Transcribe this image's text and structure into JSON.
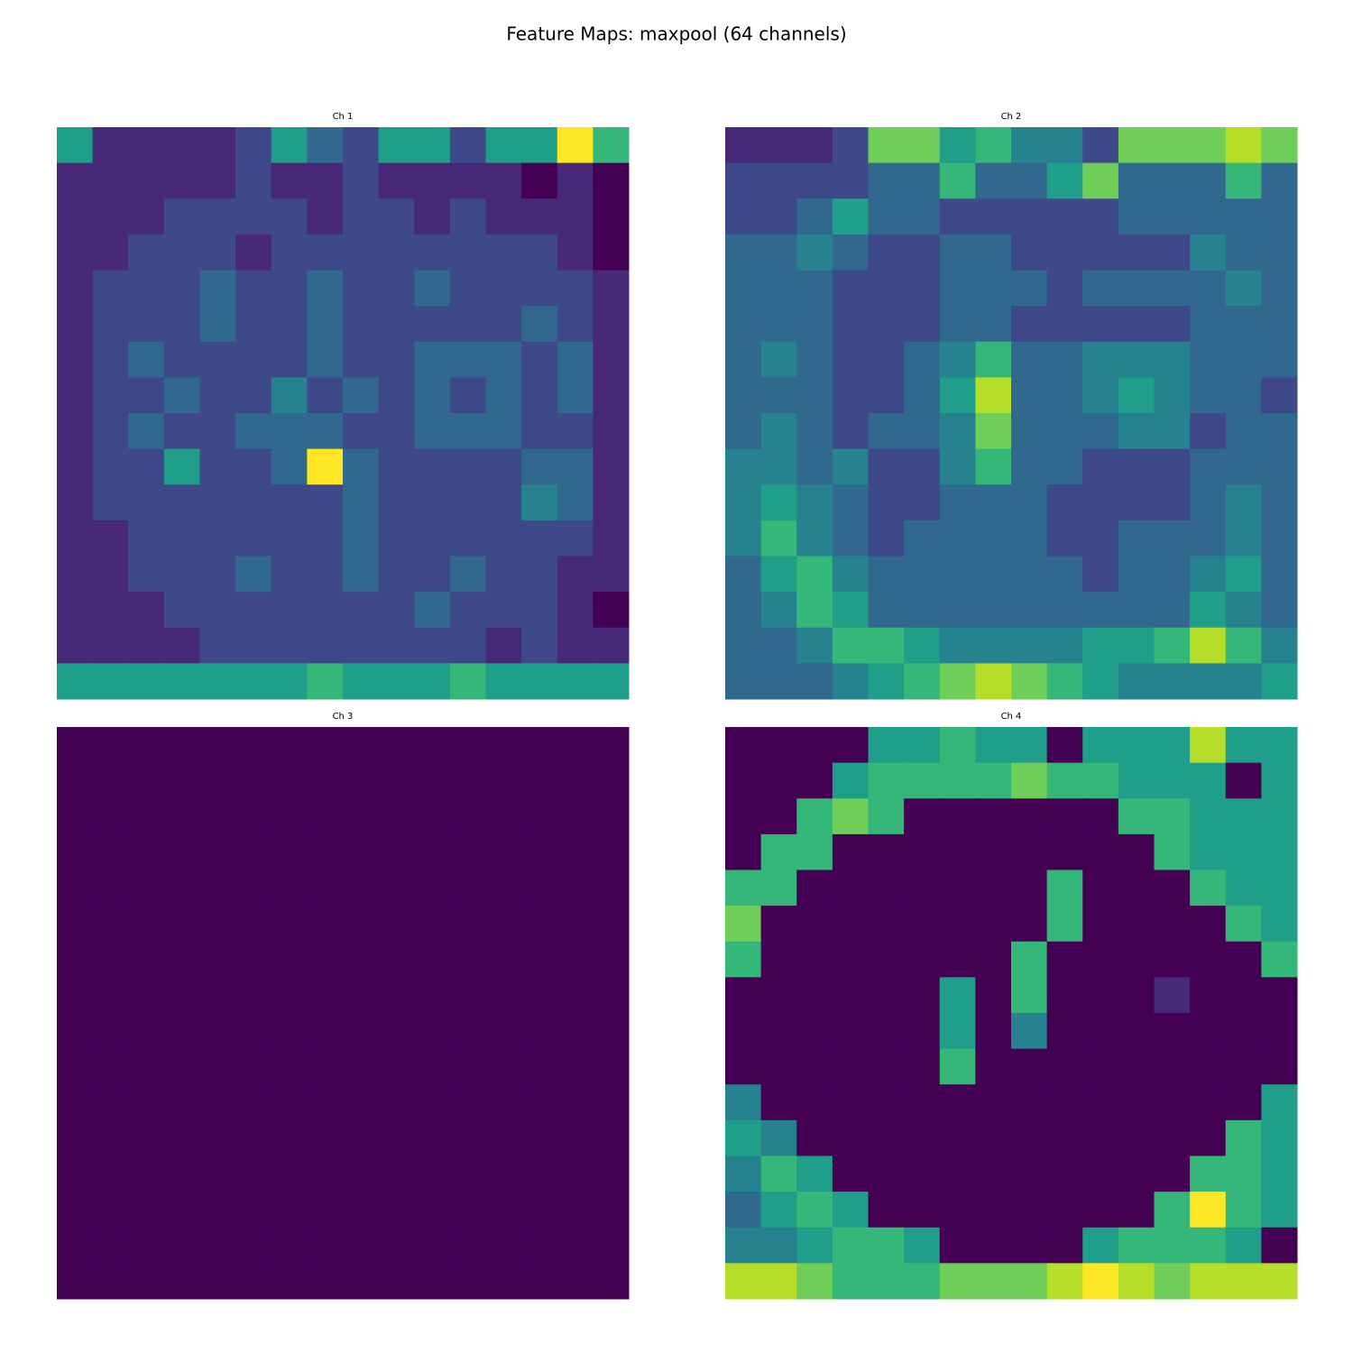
{
  "title": "Feature Maps: maxpool (64 channels)",
  "chart_data": [
    {
      "type": "heatmap",
      "title": "Ch 1",
      "colormap": "viridis",
      "zlim": [
        0,
        9
      ],
      "values": [
        [
          5,
          1,
          1,
          1,
          1,
          2,
          5,
          3,
          2,
          5,
          5,
          2,
          5,
          5,
          9,
          6
        ],
        [
          1,
          1,
          1,
          1,
          1,
          2,
          1,
          1,
          2,
          1,
          1,
          1,
          1,
          0,
          1,
          0
        ],
        [
          1,
          1,
          1,
          2,
          2,
          2,
          2,
          1,
          2,
          2,
          1,
          2,
          1,
          1,
          1,
          0
        ],
        [
          1,
          1,
          2,
          2,
          2,
          1,
          2,
          2,
          2,
          2,
          2,
          2,
          2,
          2,
          1,
          0
        ],
        [
          1,
          2,
          2,
          2,
          3,
          2,
          2,
          3,
          2,
          2,
          3,
          2,
          2,
          2,
          2,
          1
        ],
        [
          1,
          2,
          2,
          2,
          3,
          2,
          2,
          3,
          2,
          2,
          2,
          2,
          2,
          3,
          2,
          1
        ],
        [
          1,
          2,
          3,
          2,
          2,
          2,
          2,
          3,
          2,
          2,
          3,
          3,
          3,
          2,
          3,
          1
        ],
        [
          1,
          2,
          2,
          3,
          2,
          2,
          4,
          2,
          3,
          2,
          3,
          2,
          3,
          2,
          3,
          1
        ],
        [
          1,
          2,
          3,
          2,
          2,
          3,
          3,
          3,
          2,
          2,
          3,
          3,
          3,
          2,
          2,
          1
        ],
        [
          1,
          2,
          2,
          5,
          2,
          2,
          3,
          9,
          3,
          2,
          2,
          2,
          2,
          3,
          3,
          1
        ],
        [
          1,
          2,
          2,
          2,
          2,
          2,
          2,
          2,
          3,
          2,
          2,
          2,
          2,
          4,
          3,
          1
        ],
        [
          1,
          1,
          2,
          2,
          2,
          2,
          2,
          2,
          3,
          2,
          2,
          2,
          2,
          2,
          2,
          1
        ],
        [
          1,
          1,
          2,
          2,
          2,
          3,
          2,
          2,
          3,
          2,
          2,
          3,
          2,
          2,
          1,
          1
        ],
        [
          1,
          1,
          1,
          2,
          2,
          2,
          2,
          2,
          2,
          2,
          3,
          2,
          2,
          2,
          1,
          0
        ],
        [
          1,
          1,
          1,
          1,
          2,
          2,
          2,
          2,
          2,
          2,
          2,
          2,
          1,
          2,
          1,
          1
        ],
        [
          5,
          5,
          5,
          5,
          5,
          5,
          5,
          6,
          5,
          5,
          5,
          6,
          5,
          5,
          5,
          5
        ]
      ]
    },
    {
      "type": "heatmap",
      "title": "Ch 2",
      "colormap": "viridis",
      "zlim": [
        0,
        9
      ],
      "values": [
        [
          1,
          1,
          1,
          2,
          7,
          7,
          5,
          6,
          4,
          4,
          2,
          7,
          7,
          7,
          8,
          7
        ],
        [
          2,
          2,
          2,
          2,
          3,
          3,
          6,
          3,
          3,
          5,
          7,
          3,
          3,
          3,
          6,
          3
        ],
        [
          2,
          2,
          3,
          5,
          3,
          3,
          2,
          2,
          2,
          2,
          2,
          3,
          3,
          3,
          3,
          3
        ],
        [
          3,
          3,
          4,
          3,
          2,
          2,
          3,
          3,
          2,
          2,
          2,
          2,
          2,
          4,
          3,
          3
        ],
        [
          3,
          3,
          3,
          2,
          2,
          2,
          3,
          3,
          3,
          2,
          3,
          3,
          3,
          3,
          4,
          3
        ],
        [
          3,
          3,
          3,
          2,
          2,
          2,
          3,
          3,
          2,
          2,
          2,
          2,
          2,
          3,
          3,
          3
        ],
        [
          3,
          4,
          3,
          2,
          2,
          3,
          4,
          6,
          3,
          3,
          4,
          4,
          4,
          3,
          3,
          3
        ],
        [
          3,
          3,
          3,
          2,
          2,
          3,
          5,
          8,
          3,
          3,
          4,
          5,
          4,
          3,
          3,
          2
        ],
        [
          3,
          4,
          3,
          2,
          3,
          3,
          4,
          7,
          3,
          3,
          3,
          4,
          4,
          2,
          3,
          3
        ],
        [
          4,
          4,
          3,
          4,
          2,
          2,
          4,
          6,
          3,
          3,
          2,
          2,
          2,
          3,
          3,
          3
        ],
        [
          4,
          5,
          4,
          3,
          2,
          2,
          3,
          3,
          3,
          2,
          2,
          2,
          2,
          3,
          4,
          3
        ],
        [
          4,
          6,
          4,
          3,
          2,
          3,
          3,
          3,
          3,
          2,
          2,
          3,
          3,
          3,
          4,
          3
        ],
        [
          3,
          5,
          6,
          4,
          3,
          3,
          3,
          3,
          3,
          3,
          2,
          3,
          3,
          4,
          5,
          3
        ],
        [
          3,
          4,
          6,
          5,
          3,
          3,
          3,
          3,
          3,
          3,
          3,
          3,
          3,
          5,
          4,
          3
        ],
        [
          3,
          3,
          4,
          6,
          6,
          5,
          4,
          4,
          4,
          4,
          5,
          5,
          6,
          8,
          6,
          4
        ],
        [
          3,
          3,
          3,
          4,
          5,
          6,
          7,
          8,
          7,
          6,
          5,
          4,
          4,
          4,
          4,
          5
        ]
      ]
    },
    {
      "type": "heatmap",
      "title": "Ch 3",
      "colormap": "viridis",
      "zlim": [
        0,
        9
      ],
      "values": [
        [
          0,
          0,
          0,
          0,
          0,
          0,
          0,
          0,
          0,
          0,
          0,
          0,
          0,
          0,
          0,
          0
        ],
        [
          0,
          0,
          0,
          0,
          0,
          0,
          0,
          0,
          0,
          0,
          0,
          0,
          0,
          0,
          0,
          0
        ],
        [
          0,
          0,
          0,
          0,
          0,
          0,
          0,
          0,
          0,
          0,
          0,
          0,
          0,
          0,
          0,
          0
        ],
        [
          0,
          0,
          0,
          0,
          0,
          0,
          0,
          0,
          0,
          0,
          0,
          0,
          0,
          0,
          0,
          0
        ],
        [
          0,
          0,
          0,
          0,
          0,
          0,
          0,
          0,
          0,
          0,
          0,
          0,
          0,
          0,
          0,
          0
        ],
        [
          0,
          0,
          0,
          0,
          0,
          0,
          0,
          0,
          0,
          0,
          0,
          0,
          0,
          0,
          0,
          0
        ],
        [
          0,
          0,
          0,
          0,
          0,
          0,
          0,
          0,
          0,
          0,
          0,
          0,
          0,
          0,
          0,
          0
        ],
        [
          0,
          0,
          0,
          0,
          0,
          0,
          0,
          0,
          0,
          0,
          0,
          0,
          0,
          0,
          0,
          0
        ],
        [
          0,
          0,
          0,
          0,
          0,
          0,
          0,
          0,
          0,
          0,
          0,
          0,
          0,
          0,
          0,
          0
        ],
        [
          0,
          0,
          0,
          0,
          0,
          0,
          0,
          0,
          0,
          0,
          0,
          0,
          0,
          0,
          0,
          0
        ],
        [
          0,
          0,
          0,
          0,
          0,
          0,
          0,
          0,
          0,
          0,
          0,
          0,
          0,
          0,
          0,
          0
        ],
        [
          0,
          0,
          0,
          0,
          0,
          0,
          0,
          0,
          0,
          0,
          0,
          0,
          0,
          0,
          0,
          0
        ],
        [
          0,
          0,
          0,
          0,
          0,
          0,
          0,
          0,
          0,
          0,
          0,
          0,
          0,
          0,
          0,
          0
        ],
        [
          0,
          0,
          0,
          0,
          0,
          0,
          0,
          0,
          0,
          0,
          0,
          0,
          0,
          0,
          0,
          0
        ],
        [
          0,
          0,
          0,
          0,
          0,
          0,
          0,
          0,
          0,
          0,
          0,
          0,
          0,
          0,
          0,
          0
        ],
        [
          0,
          0,
          0,
          0,
          0,
          0,
          0,
          0,
          0,
          0,
          0,
          0,
          0,
          0,
          0,
          0
        ]
      ]
    },
    {
      "type": "heatmap",
      "title": "Ch 4",
      "colormap": "viridis",
      "zlim": [
        0,
        9
      ],
      "values": [
        [
          0,
          0,
          0,
          0,
          5,
          5,
          6,
          5,
          5,
          0,
          5,
          5,
          5,
          8,
          5,
          5
        ],
        [
          0,
          0,
          0,
          5,
          6,
          6,
          6,
          6,
          7,
          6,
          6,
          5,
          5,
          5,
          0,
          5
        ],
        [
          0,
          0,
          6,
          7,
          6,
          0,
          0,
          0,
          0,
          0,
          0,
          6,
          6,
          5,
          5,
          5
        ],
        [
          0,
          6,
          6,
          0,
          0,
          0,
          0,
          0,
          0,
          0,
          0,
          0,
          6,
          5,
          5,
          5
        ],
        [
          6,
          6,
          0,
          0,
          0,
          0,
          0,
          0,
          0,
          6,
          0,
          0,
          0,
          6,
          5,
          5
        ],
        [
          7,
          0,
          0,
          0,
          0,
          0,
          0,
          0,
          0,
          6,
          0,
          0,
          0,
          0,
          6,
          5
        ],
        [
          6,
          0,
          0,
          0,
          0,
          0,
          0,
          0,
          6,
          0,
          0,
          0,
          0,
          0,
          0,
          6
        ],
        [
          0,
          0,
          0,
          0,
          0,
          0,
          5,
          0,
          6,
          0,
          0,
          0,
          1,
          0,
          0,
          0
        ],
        [
          0,
          0,
          0,
          0,
          0,
          0,
          5,
          0,
          4,
          0,
          0,
          0,
          0,
          0,
          0,
          0
        ],
        [
          0,
          0,
          0,
          0,
          0,
          0,
          6,
          0,
          0,
          0,
          0,
          0,
          0,
          0,
          0,
          0
        ],
        [
          4,
          0,
          0,
          0,
          0,
          0,
          0,
          0,
          0,
          0,
          0,
          0,
          0,
          0,
          0,
          5
        ],
        [
          5,
          4,
          0,
          0,
          0,
          0,
          0,
          0,
          0,
          0,
          0,
          0,
          0,
          0,
          6,
          5
        ],
        [
          4,
          6,
          5,
          0,
          0,
          0,
          0,
          0,
          0,
          0,
          0,
          0,
          0,
          6,
          6,
          5
        ],
        [
          3,
          5,
          6,
          5,
          0,
          0,
          0,
          0,
          0,
          0,
          0,
          0,
          6,
          9,
          6,
          5
        ],
        [
          4,
          4,
          5,
          6,
          6,
          5,
          0,
          0,
          0,
          0,
          5,
          6,
          6,
          6,
          5,
          0
        ],
        [
          8,
          8,
          7,
          6,
          6,
          6,
          7,
          7,
          7,
          8,
          9,
          8,
          7,
          8,
          8,
          8
        ]
      ]
    }
  ]
}
